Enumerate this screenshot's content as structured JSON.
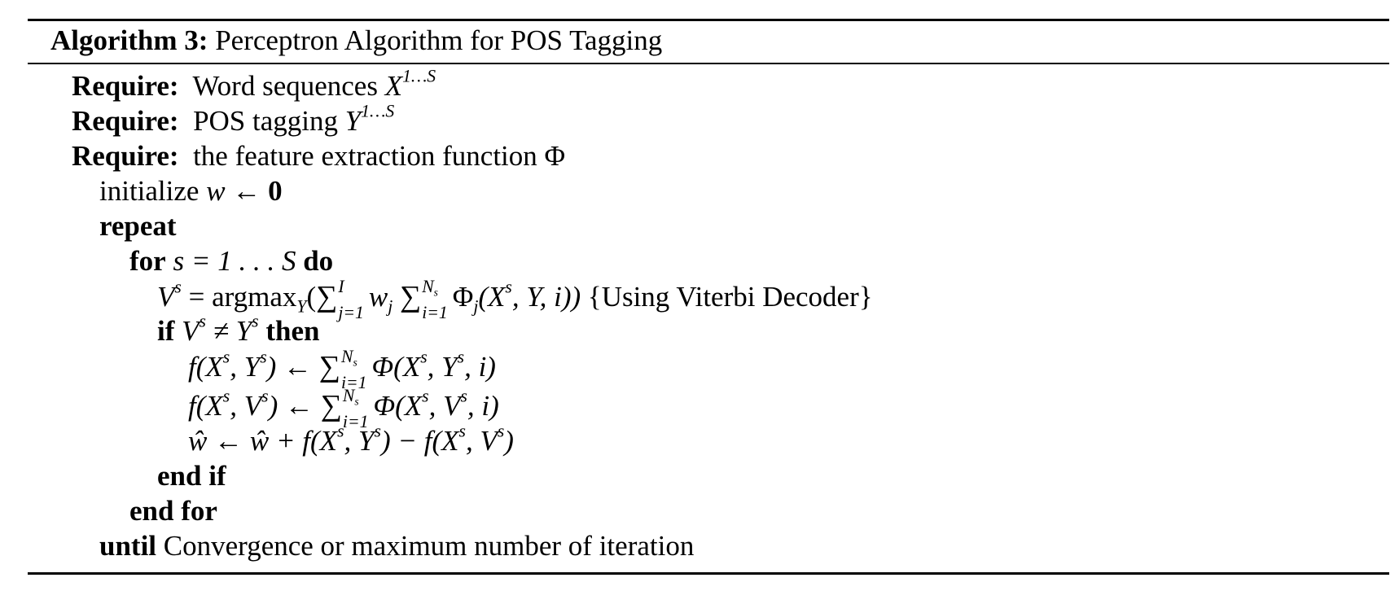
{
  "algorithm": {
    "label": "Algorithm 3:",
    "title": "Perceptron Algorithm for POS Tagging"
  },
  "lines": {
    "require_1": {
      "keyword": "Require:",
      "text": "Word sequences",
      "math": "X",
      "superscript": "1…S"
    },
    "require_2": {
      "keyword": "Require:",
      "text": "POS tagging",
      "math": "Y",
      "superscript": "1…S"
    },
    "require_3": {
      "keyword": "Require:",
      "text": "the feature extraction function",
      "math": "Φ"
    },
    "initialize": {
      "text": "initialize",
      "math_var": "w",
      "arrow": "←",
      "bold_value": "0"
    },
    "repeat": {
      "keyword": "repeat"
    },
    "for": {
      "keyword": "for",
      "math": "s = 1 . . . S",
      "keyword_end": "do"
    },
    "viterbi": {
      "lhs": "V",
      "lhs_sup": "s",
      "equals": "=",
      "op": "argmax",
      "op_sub": "Y",
      "sum1_top": "I",
      "sum1_bot": "j=1",
      "w": "w",
      "w_sub": "j",
      "sum2_top": "N",
      "sum2_top_sub": "s",
      "sum2_bot": "i=1",
      "phi": "Φ",
      "phi_sub": "j",
      "args": "(X^s, Y, i))",
      "comment": "{Using Viterbi Decoder}"
    },
    "if": {
      "keyword": "if",
      "math": "V^s ≠ Y^s",
      "keyword_end": "then"
    },
    "update_gold": {
      "lhs": "f(X^s, Y^s) ←",
      "sum_top": "N",
      "sum_top_sub": "s",
      "sum_bot": "i=1",
      "rhs": "Φ(X^s, Y^s, i)"
    },
    "update_pred": {
      "lhs": "f(X^s, V^s) ←",
      "sum_top": "N",
      "sum_top_sub": "s",
      "sum_bot": "i=1",
      "rhs": "Φ(X^s, V^s, i)"
    },
    "weight_update": {
      "text": "ŵ ← ŵ + f(X^s, Y^s) − f(X^s, V^s)"
    },
    "end_if": {
      "keyword": "end if"
    },
    "end_for": {
      "keyword": "end for"
    },
    "until": {
      "keyword": "until",
      "text": "Convergence or maximum number of iteration"
    }
  }
}
